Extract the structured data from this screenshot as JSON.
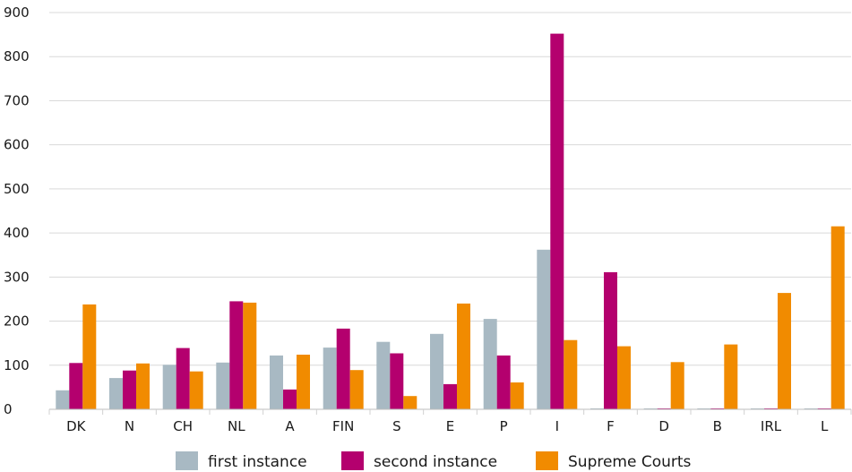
{
  "chart_data": {
    "type": "bar",
    "categories": [
      "DK",
      "N",
      "CH",
      "NL",
      "A",
      "FIN",
      "S",
      "E",
      "P",
      "I",
      "F",
      "D",
      "B",
      "IRL",
      "L"
    ],
    "series": [
      {
        "name": "first instance",
        "color": "#a8b9c3",
        "values": [
          43,
          71,
          101,
          106,
          122,
          140,
          153,
          171,
          205,
          362,
          0,
          0,
          0,
          0,
          0
        ]
      },
      {
        "name": "second instance",
        "color": "#b4006e",
        "values": [
          105,
          88,
          139,
          245,
          45,
          183,
          127,
          57,
          122,
          852,
          311,
          0,
          0,
          0,
          0
        ]
      },
      {
        "name": "Supreme Courts",
        "color": "#f18b00",
        "values": [
          238,
          104,
          86,
          242,
          124,
          89,
          30,
          240,
          61,
          157,
          143,
          107,
          147,
          264,
          415
        ]
      }
    ],
    "ylim": [
      0,
      900
    ],
    "yticks": [
      0,
      100,
      200,
      300,
      400,
      500,
      600,
      700,
      800,
      900
    ],
    "grid": true,
    "legend": "bottom",
    "title": "",
    "xlabel": "",
    "ylabel": ""
  }
}
